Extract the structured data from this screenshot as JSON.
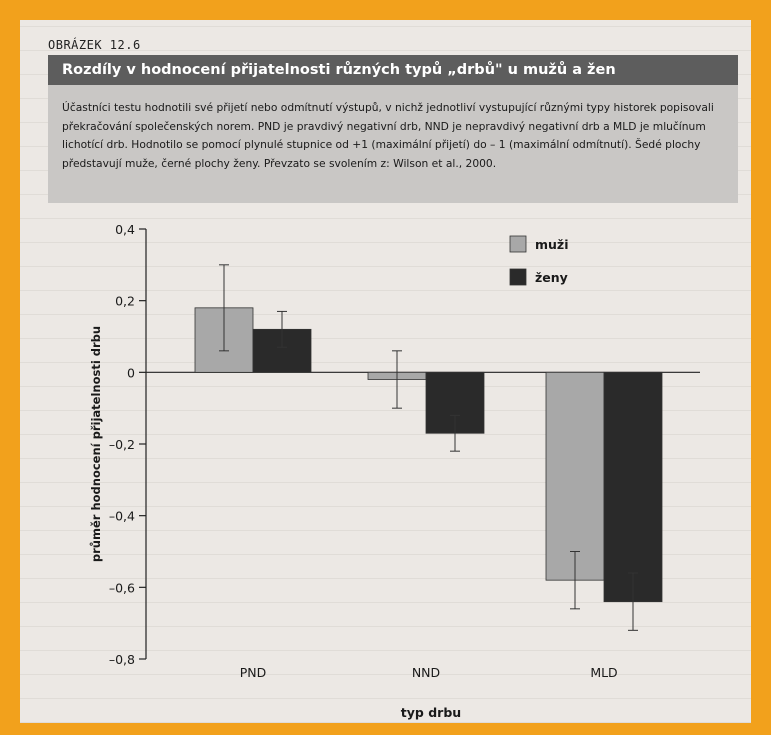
{
  "figure_label": "OBRÁZEK 12.6",
  "title": "Rozdíly v hodnocení přijatelnosti různých typů „drbů\" u mužů a žen",
  "caption": "Účastníci testu hodnotili své přijetí nebo odmítnutí výstupů, v nichž jednotliví vystupující různými typy historek popisovali překračování společenských norem. PND je pravdivý negativní drb, NND je nepravdivý negativní drb a MLD je mlučínum lichotící drb. Hodnotilo se pomocí plynulé stupnice od +1 (maximální přijetí) do – 1 (maximální odmítnutí). Šedé plochy představují muže, černé plochy ženy. Převzato se svolením z: Wilson et al., 2000.",
  "colors": {
    "frame": "#f2a11c",
    "muzi": "#a8a8a8",
    "zeny": "#2a2a2a",
    "title_bar": "#5d5d5d"
  },
  "chart_data": {
    "type": "bar",
    "categories": [
      "PND",
      "NND",
      "MLD"
    ],
    "series": [
      {
        "name": "muži",
        "values": [
          0.18,
          -0.02,
          -0.58
        ],
        "error": [
          0.12,
          0.08,
          0.08
        ]
      },
      {
        "name": "ženy",
        "values": [
          0.12,
          -0.17,
          -0.64
        ],
        "error": [
          0.05,
          0.05,
          0.08
        ]
      }
    ],
    "xlabel": "typ drbu",
    "ylabel": "průměr hodnocení přijatelnosti drbu",
    "ylim": [
      -0.8,
      0.4
    ],
    "yticks": [
      0.4,
      0.2,
      0,
      -0.2,
      -0.4,
      -0.6,
      -0.8
    ],
    "ytick_labels": [
      "0,4",
      "0,2",
      "0",
      "–0,2",
      "–0,4",
      "–0,6",
      "–0,8"
    ],
    "legend_position": "top-right",
    "grid": false
  }
}
